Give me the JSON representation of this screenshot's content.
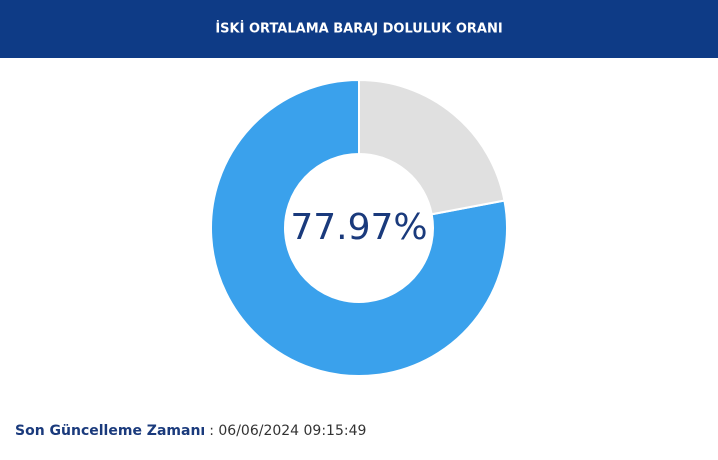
{
  "chart_data": {
    "type": "pie",
    "title": "İSKİ ORTALAMA BARAJ DOLULUK ORANI",
    "categories": [
      null,
      null
    ],
    "values": [
      77.97,
      22.03
    ],
    "value_labels": [
      "77.97%",
      null
    ],
    "colors": [
      "#3aa1ec",
      "#e0e0e0"
    ]
  },
  "footer": {
    "label": "Son Güncelleme Zamanı",
    "time": ": 06/06/2024 09:15:49"
  }
}
